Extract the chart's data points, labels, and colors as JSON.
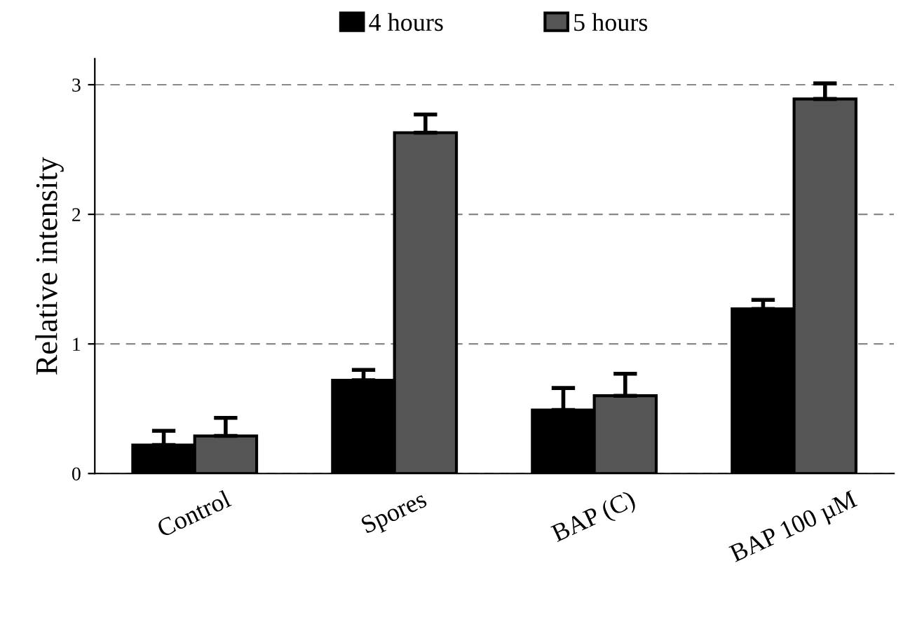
{
  "chart_data": {
    "type": "bar",
    "ylabel": "Relative intensity",
    "categories": [
      "Control",
      "Spores",
      "BAP (C)",
      "BAP 100 µM"
    ],
    "series": [
      {
        "name": "4 hours",
        "color": "#000000",
        "values": [
          0.22,
          0.72,
          0.49,
          1.27
        ],
        "errors": [
          [
            0.22,
            0.33
          ],
          [
            0.72,
            0.8
          ],
          [
            0.49,
            0.66
          ],
          [
            1.27,
            1.34
          ]
        ]
      },
      {
        "name": "5 hours",
        "color": "#555555",
        "values": [
          0.29,
          2.63,
          0.6,
          2.89
        ],
        "errors": [
          [
            0.29,
            0.43
          ],
          [
            2.63,
            2.77
          ],
          [
            0.6,
            0.77
          ],
          [
            2.89,
            3.01
          ]
        ]
      }
    ],
    "ylim": [
      0,
      3.2
    ],
    "yticks": [
      0,
      1,
      2,
      3
    ],
    "grid": "y",
    "legend": "top"
  }
}
